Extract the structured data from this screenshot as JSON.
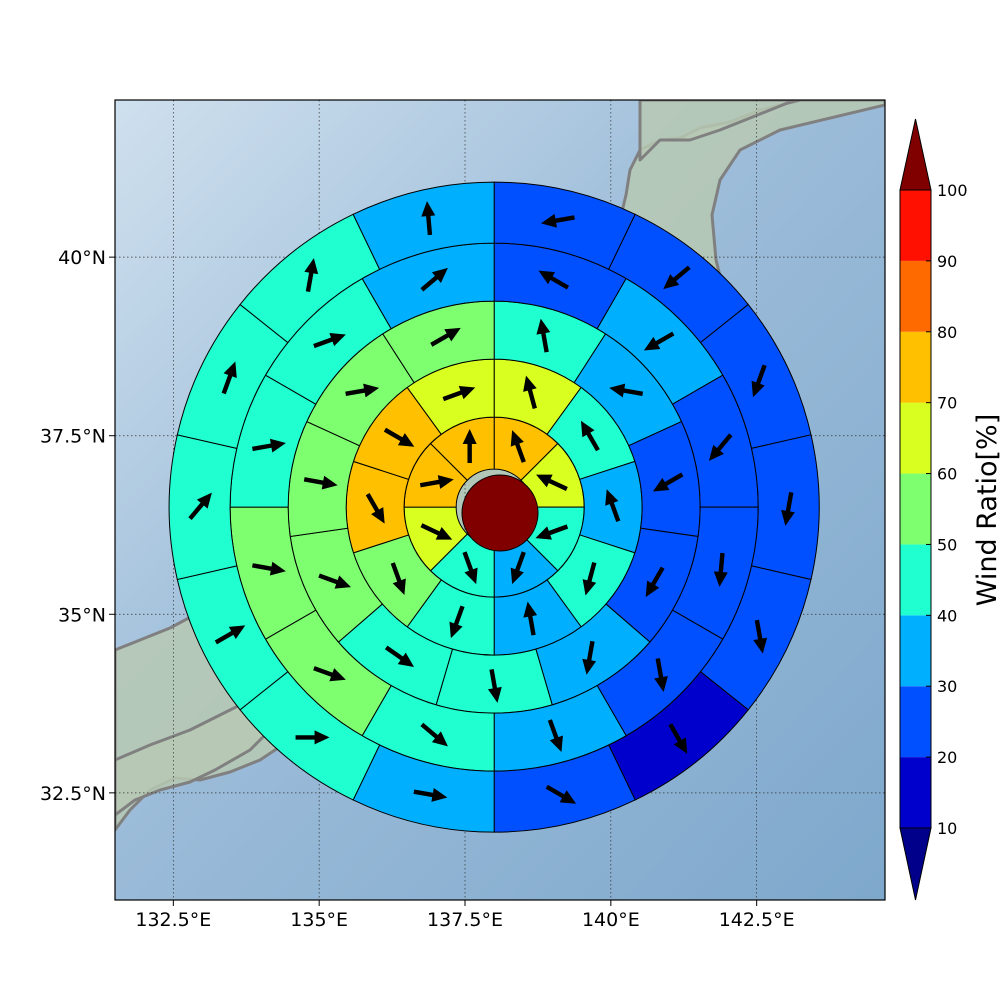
{
  "map": {
    "lon_range": [
      131.5,
      144.7
    ],
    "lat_range": [
      31.0,
      42.2
    ],
    "center": {
      "lon": 138.0,
      "lat": 36.5
    },
    "gridlines": true,
    "x_ticks": [
      {
        "value": 132.5,
        "label": "132.5°E"
      },
      {
        "value": 135.0,
        "label": "135°E"
      },
      {
        "value": 137.5,
        "label": "137.5°E"
      },
      {
        "value": 140.0,
        "label": "140°E"
      },
      {
        "value": 142.5,
        "label": "142.5°E"
      }
    ],
    "y_ticks": [
      {
        "value": 40.0,
        "label": "40°N"
      },
      {
        "value": 37.5,
        "label": "37.5°N"
      },
      {
        "value": 35.0,
        "label": "35°N"
      },
      {
        "value": 32.5,
        "label": "32.5°N"
      }
    ],
    "colors": {
      "ocean_light": "#cfe0ee",
      "ocean_dark": "#7ea8cc",
      "land": "#b7c9b3",
      "coast": "#808080",
      "center_disk": "#800000"
    }
  },
  "colorbar": {
    "label": "Wind Ratio[%]",
    "ticks": [
      "10",
      "20",
      "30",
      "40",
      "50",
      "60",
      "70",
      "80",
      "90",
      "100"
    ],
    "colors": [
      "#0000cd",
      "#0050ff",
      "#00b0ff",
      "#20ffd0",
      "#7dff70",
      "#d8ff20",
      "#ffc000",
      "#ff6a00",
      "#ff1000"
    ],
    "under_color": "#00008b",
    "over_color": "#800000"
  },
  "chart_data": {
    "type": "polar_sector_map",
    "rings": [
      {
        "values": [
          75,
          60,
          45,
          35,
          45,
          65,
          75,
          72
        ],
        "arrows": [
          -20,
          -65,
          -110,
          -160,
          160,
          115,
          80,
          0
        ]
      },
      {
        "values": [
          62,
          45,
          35,
          40,
          32,
          45,
          58,
          75,
          70,
          65
        ],
        "arrows": [
          -15,
          -30,
          -20,
          -165,
          -10,
          -160,
          160,
          150,
          120,
          70
        ]
      },
      {
        "values": [
          42,
          36,
          25,
          20,
          38,
          40,
          45,
          50,
          50,
          55,
          55
        ],
        "arrows": [
          -10,
          -80,
          -120,
          -150,
          -170,
          170,
          125,
          110,
          100,
          80,
          60
        ]
      },
      {
        "values": [
          25,
          34,
          25,
          22,
          24,
          32,
          40,
          55,
          50,
          45,
          42,
          35
        ],
        "arrows": [
          -60,
          -120,
          -140,
          -175,
          170,
          160,
          130,
          110,
          100,
          80,
          70,
          50
        ]
      },
      {
        "values": [
          20,
          23,
          25,
          20,
          22,
          18,
          28,
          38,
          40,
          45,
          48,
          42,
          40,
          38
        ],
        "arrows": [
          -100,
          -130,
          -160,
          -170,
          170,
          150,
          120,
          100,
          90,
          60,
          40,
          20,
          10,
          -5
        ]
      }
    ]
  }
}
